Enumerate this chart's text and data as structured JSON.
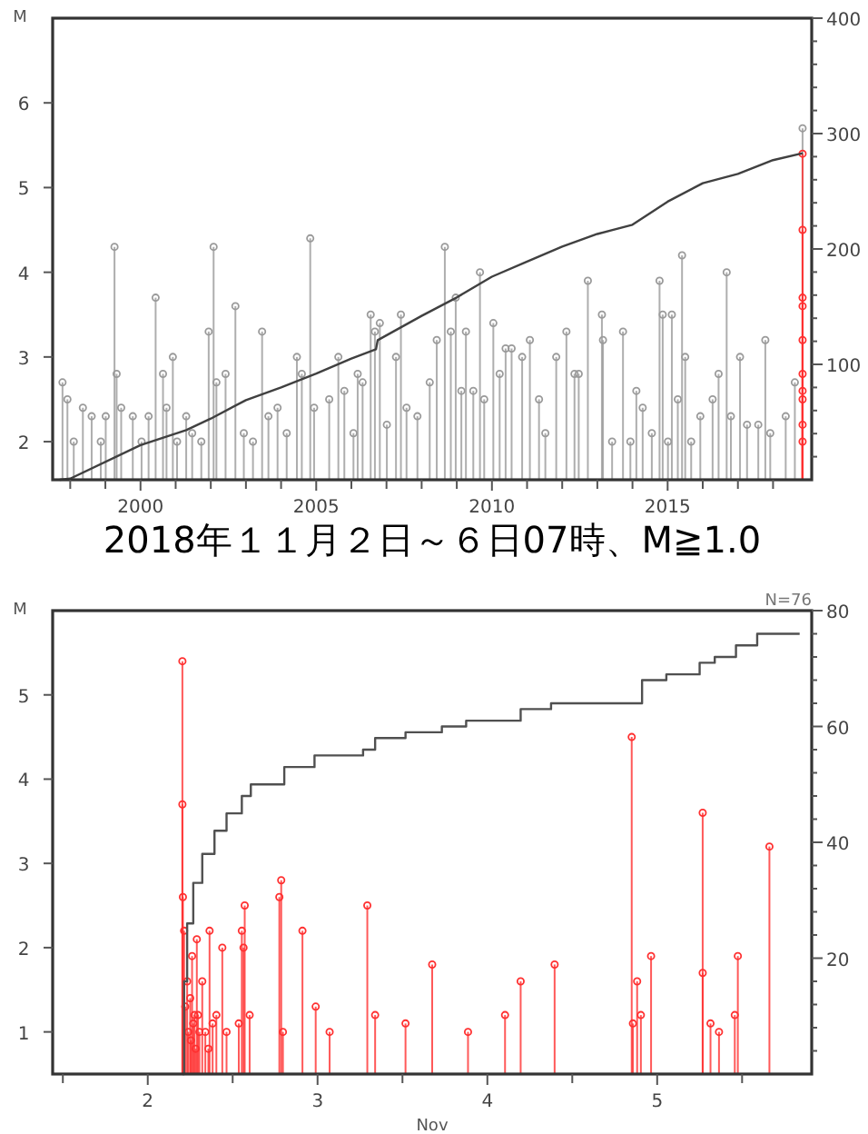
{
  "chart_data": [
    {
      "type": "lollipop",
      "ylabel": "M",
      "xlim": [
        1997.5,
        2019.1
      ],
      "ylim": [
        1.55,
        7.0
      ],
      "y2lim": [
        0,
        400
      ],
      "xticks": [
        {
          "value": 1998,
          "label": null
        },
        {
          "value": 1999,
          "label": null
        },
        2000,
        {
          "value": 2001,
          "label": null
        },
        {
          "value": 2002,
          "label": null
        },
        {
          "value": 2003,
          "label": null
        },
        {
          "value": 2004,
          "label": null
        },
        2005,
        {
          "value": 2006,
          "label": null
        },
        {
          "value": 2007,
          "label": null
        },
        {
          "value": 2008,
          "label": null
        },
        {
          "value": 2009,
          "label": null
        },
        2010,
        {
          "value": 2011,
          "label": null
        },
        {
          "value": 2012,
          "label": null
        },
        {
          "value": 2013,
          "label": null
        },
        {
          "value": 2014,
          "label": null
        },
        2015,
        {
          "value": 2016,
          "label": null
        },
        {
          "value": 2017,
          "label": null
        },
        {
          "value": 2018,
          "label": null
        }
      ],
      "yticks": [
        2,
        3,
        4,
        5,
        6
      ],
      "y2ticks": [
        {
          "value": 20,
          "label": null
        },
        {
          "value": 40,
          "label": null
        },
        {
          "value": 60,
          "label": null
        },
        {
          "value": 80,
          "label": null
        },
        100,
        {
          "value": 120,
          "label": null
        },
        {
          "value": 140,
          "label": null
        },
        {
          "value": 160,
          "label": null
        },
        {
          "value": 180,
          "label": null
        },
        200,
        {
          "value": 220,
          "label": null
        },
        {
          "value": 240,
          "label": null
        },
        {
          "value": 260,
          "label": null
        },
        {
          "value": 280,
          "label": null
        },
        300,
        {
          "value": 320,
          "label": null
        },
        {
          "value": 340,
          "label": null
        },
        {
          "value": 360,
          "label": null
        },
        {
          "value": 380,
          "label": null
        },
        400
      ],
      "series": [
        {
          "marker": "circle",
          "color": "#9a9a9a",
          "x": [
            1997.78,
            1997.92,
            1998.1,
            1998.36,
            1998.61,
            1998.87,
            1999.01,
            1999.26,
            1999.32,
            1999.45,
            1999.78,
            2000.03,
            2000.23,
            2000.43,
            2000.64,
            2000.74,
            2000.92,
            2001.04,
            2001.3,
            2001.47,
            2001.73,
            2001.94,
            2002.08,
            2002.16,
            2002.42,
            2002.7,
            2002.94,
            2003.2,
            2003.46,
            2003.64,
            2003.9,
            2004.16,
            2004.45,
            2004.59,
            2004.83,
            2004.94,
            2005.37,
            2005.63,
            2005.8,
            2006.06,
            2006.18,
            2006.32,
            2006.55,
            2006.67,
            2006.81,
            2007.01,
            2007.27,
            2007.41,
            2007.57,
            2007.88,
            2008.23,
            2008.43,
            2008.66,
            2008.83,
            2008.97,
            2009.13,
            2009.26,
            2009.47,
            2009.66,
            2009.78,
            2010.04,
            2010.22,
            2010.39,
            2010.56,
            2010.86,
            2011.08,
            2011.34,
            2011.52,
            2011.83,
            2012.12,
            2012.35,
            2012.47,
            2012.73,
            2013.13,
            2013.16,
            2013.42,
            2013.73,
            2013.94,
            2014.11,
            2014.29,
            2014.55,
            2014.77,
            2014.86,
            2015.01,
            2015.12,
            2015.29,
            2015.41,
            2015.5,
            2015.67,
            2015.93,
            2016.28,
            2016.45,
            2016.68,
            2016.8,
            2017.06,
            2017.26,
            2017.58,
            2017.78,
            2017.92,
            2018.36,
            2018.62,
            2018.84
          ],
          "values": [
            2.7,
            2.5,
            2.0,
            2.4,
            2.3,
            2.0,
            2.3,
            4.3,
            2.8,
            2.4,
            2.3,
            2.0,
            2.3,
            3.7,
            2.8,
            2.4,
            3.0,
            2.0,
            2.3,
            2.1,
            2.0,
            3.3,
            4.3,
            2.7,
            2.8,
            3.6,
            2.1,
            2.0,
            3.3,
            2.3,
            2.4,
            2.1,
            3.0,
            2.8,
            4.4,
            2.4,
            2.5,
            3.0,
            2.6,
            2.1,
            2.8,
            2.7,
            3.5,
            3.3,
            3.4,
            2.2,
            3.0,
            3.5,
            2.4,
            2.3,
            2.7,
            3.2,
            4.3,
            3.3,
            3.7,
            2.6,
            3.3,
            2.6,
            4.0,
            2.5,
            3.4,
            2.8,
            3.1,
            3.1,
            3.0,
            3.2,
            2.5,
            2.1,
            3.0,
            3.3,
            2.8,
            2.8,
            3.9,
            3.5,
            3.2,
            2.0,
            3.3,
            2.0,
            2.6,
            2.4,
            2.1,
            3.9,
            3.5,
            2.0,
            3.5,
            2.5,
            4.2,
            3.0,
            2.0,
            2.3,
            2.5,
            2.8,
            4.0,
            2.3,
            3.0,
            2.2,
            2.2,
            3.2,
            2.1,
            2.3,
            2.7,
            5.7
          ]
        },
        {
          "marker": "circle",
          "color": "#ff3030",
          "x": [
            2018.84,
            2018.84,
            2018.84,
            2018.84,
            2018.84,
            2018.84,
            2018.84,
            2018.84,
            2018.84,
            2018.84
          ],
          "values": [
            5.4,
            4.5,
            3.7,
            3.6,
            3.2,
            2.8,
            2.6,
            2.5,
            2.2,
            2.0
          ]
        },
        {
          "type": "line",
          "axis": "y2",
          "color": "#404040",
          "x": [
            1997.7,
            1998.0,
            2000.0,
            2001.3,
            2002.0,
            2003.0,
            2004.0,
            2005.0,
            2006.0,
            2006.7,
            2006.75,
            2008.0,
            2009.0,
            2010.0,
            2011.0,
            2012.0,
            2013.0,
            2014.0,
            2015.0,
            2016.0,
            2017.0,
            2018.0,
            2018.84
          ],
          "values": [
            0,
            1,
            30,
            43,
            53,
            69,
            80,
            92,
            105,
            113,
            121,
            142,
            158,
            176,
            189,
            202,
            213,
            221,
            241,
            257,
            265,
            277,
            283
          ]
        }
      ]
    },
    {
      "type": "lollipop",
      "title": "2018年１１月２日～６日07時、M≧1.0",
      "annotations": [
        "N=76"
      ],
      "ylabel": "M",
      "xlabel": "Nov",
      "xlim": [
        1.94,
        6.41
      ],
      "ylim": [
        0.5,
        6.0
      ],
      "y2lim": [
        0,
        80
      ],
      "xticks": [
        {
          "value": 2,
          "label": null
        },
        {
          "value": 2.5,
          "label": "2"
        },
        {
          "value": 3,
          "label": null
        },
        {
          "value": 3.5,
          "label": "3"
        },
        {
          "value": 4,
          "label": null
        },
        {
          "value": 4.5,
          "label": "4"
        },
        {
          "value": 5,
          "label": null
        },
        {
          "value": 5.5,
          "label": "5"
        },
        {
          "value": 6,
          "label": null
        }
      ],
      "yticks": [
        1,
        2,
        3,
        4,
        5
      ],
      "y2ticks": [
        {
          "value": 4,
          "label": null
        },
        {
          "value": 8,
          "label": null
        },
        {
          "value": 12,
          "label": null
        },
        {
          "value": 16,
          "label": null
        },
        20,
        {
          "value": 24,
          "label": null
        },
        {
          "value": 28,
          "label": null
        },
        {
          "value": 32,
          "label": null
        },
        {
          "value": 36,
          "label": null
        },
        40,
        {
          "value": 44,
          "label": null
        },
        {
          "value": 48,
          "label": null
        },
        {
          "value": 52,
          "label": null
        },
        {
          "value": 56,
          "label": null
        },
        60,
        {
          "value": 64,
          "label": null
        },
        {
          "value": 68,
          "label": null
        },
        {
          "value": 72,
          "label": null
        },
        {
          "value": 76,
          "label": null
        },
        80
      ],
      "series": [
        {
          "marker": "circle",
          "color": "#ff3030",
          "x": [
            2.704,
            2.704,
            2.707,
            2.714,
            2.721,
            2.732,
            2.739,
            2.75,
            2.754,
            2.761,
            2.768,
            2.775,
            2.782,
            2.789,
            2.796,
            2.804,
            2.821,
            2.839,
            2.857,
            2.864,
            2.882,
            2.904,
            2.939,
            2.964,
            3.036,
            3.054,
            3.064,
            3.071,
            3.1,
            3.275,
            3.286,
            3.296,
            3.411,
            3.489,
            3.571,
            3.793,
            3.839,
            4.018,
            4.175,
            4.386,
            4.604,
            4.696,
            4.896,
            5.35,
            5.357,
            5.382,
            5.404,
            5.464,
            5.768,
            5.768,
            5.814,
            5.864,
            5.957,
            5.975,
            6.161
          ],
          "values": [
            5.4,
            3.7,
            2.6,
            2.2,
            1.3,
            1.6,
            1.0,
            1.4,
            0.9,
            1.9,
            1.1,
            1.2,
            0.8,
            2.1,
            1.2,
            1.0,
            1.6,
            1.0,
            0.8,
            2.2,
            1.1,
            1.2,
            2.0,
            1.0,
            1.1,
            2.2,
            2.0,
            2.5,
            1.2,
            2.6,
            2.8,
            1.0,
            2.2,
            1.3,
            1.0,
            2.5,
            1.2,
            1.1,
            1.8,
            1.0,
            1.2,
            1.6,
            1.8,
            4.5,
            1.1,
            1.6,
            1.2,
            1.9,
            3.6,
            1.7,
            1.1,
            1.0,
            1.2,
            1.9,
            3.2
          ]
        },
        {
          "type": "step",
          "axis": "y2",
          "color": "#505050",
          "x": [
            2.704,
            2.714,
            2.732,
            2.768,
            2.821,
            2.893,
            2.964,
            3.054,
            3.107,
            3.268,
            3.304,
            3.482,
            3.768,
            3.839,
            4.018,
            4.232,
            4.375,
            4.696,
            4.875,
            5.339,
            5.411,
            5.554,
            5.75,
            5.839,
            5.964,
            6.089,
            6.339
          ],
          "values": [
            0,
            16,
            26,
            33,
            38,
            42,
            45,
            48,
            50,
            50,
            53,
            55,
            56,
            58,
            59,
            60,
            61,
            63,
            64,
            64,
            68,
            69,
            71,
            72,
            74,
            76,
            76
          ]
        }
      ]
    }
  ]
}
